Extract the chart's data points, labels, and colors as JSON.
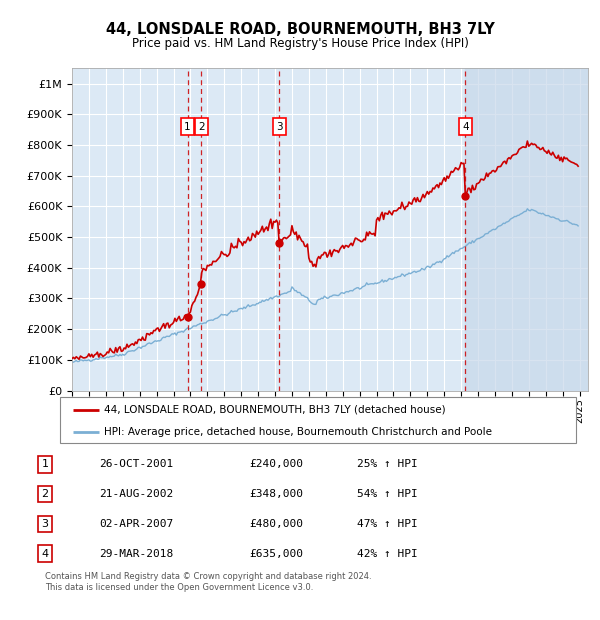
{
  "title": "44, LONSDALE ROAD, BOURNEMOUTH, BH3 7LY",
  "subtitle": "Price paid vs. HM Land Registry's House Price Index (HPI)",
  "plot_bg_color": "#dce9f5",
  "ytick_values": [
    0,
    100000,
    200000,
    300000,
    400000,
    500000,
    600000,
    700000,
    800000,
    900000,
    1000000
  ],
  "ylim": [
    0,
    1050000
  ],
  "xlim_start": 1995.0,
  "xlim_end": 2025.5,
  "red_line_color": "#cc0000",
  "blue_line_color": "#7bafd4",
  "shade_color": "#c8d8ea",
  "transaction_dates": [
    2001.833,
    2002.639,
    2007.25,
    2018.25
  ],
  "transaction_labels": [
    "1",
    "2",
    "3",
    "4"
  ],
  "transaction_prices": [
    240000,
    348000,
    480000,
    635000
  ],
  "legend_entries": [
    "44, LONSDALE ROAD, BOURNEMOUTH, BH3 7LY (detached house)",
    "HPI: Average price, detached house, Bournemouth Christchurch and Poole"
  ],
  "table_data": [
    [
      "1",
      "26-OCT-2001",
      "£240,000",
      "25% ↑ HPI"
    ],
    [
      "2",
      "21-AUG-2002",
      "£348,000",
      "54% ↑ HPI"
    ],
    [
      "3",
      "02-APR-2007",
      "£480,000",
      "47% ↑ HPI"
    ],
    [
      "4",
      "29-MAR-2018",
      "£635,000",
      "42% ↑ HPI"
    ]
  ],
  "footnote": "Contains HM Land Registry data © Crown copyright and database right 2024.\nThis data is licensed under the Open Government Licence v3.0.",
  "grid_color": "#ffffff",
  "dashed_line_color": "#cc0000"
}
